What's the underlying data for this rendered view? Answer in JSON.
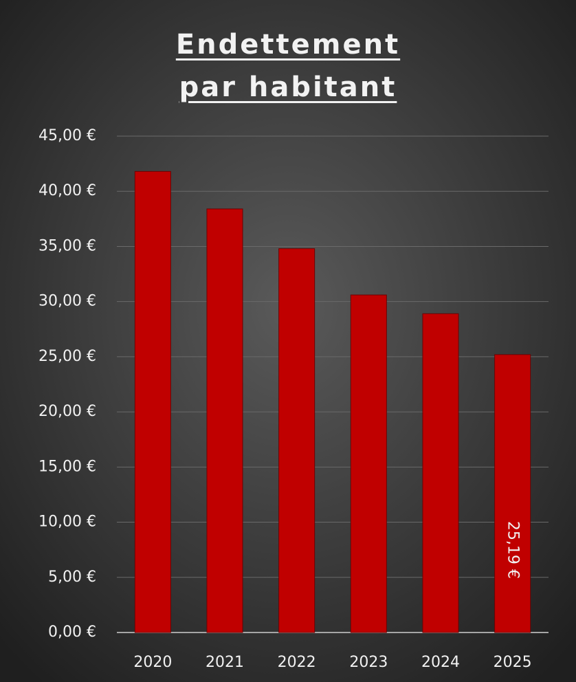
{
  "chart_data": {
    "type": "bar",
    "title": "Endettement par habitant",
    "categories": [
      "2020",
      "2021",
      "2022",
      "2023",
      "2024",
      "2025"
    ],
    "values": [
      41.8,
      38.4,
      34.8,
      30.6,
      28.9,
      25.19
    ],
    "value_labels": [
      null,
      null,
      null,
      null,
      null,
      "25,19 €"
    ],
    "color": "#c00000",
    "ylim": [
      0,
      45
    ],
    "yticks": [
      {
        "value": 0,
        "label": "0,00 €"
      },
      {
        "value": 5,
        "label": "5,00 €"
      },
      {
        "value": 10,
        "label": "10,00 €"
      },
      {
        "value": 15,
        "label": "15,00 €"
      },
      {
        "value": 20,
        "label": "20,00 €"
      },
      {
        "value": 25,
        "label": "25,00 €"
      },
      {
        "value": 30,
        "label": "30,00 €"
      },
      {
        "value": 35,
        "label": "35,00 €"
      },
      {
        "value": 40,
        "label": "40,00 €"
      },
      {
        "value": 45,
        "label": "45,00 €"
      }
    ],
    "grid": true
  }
}
